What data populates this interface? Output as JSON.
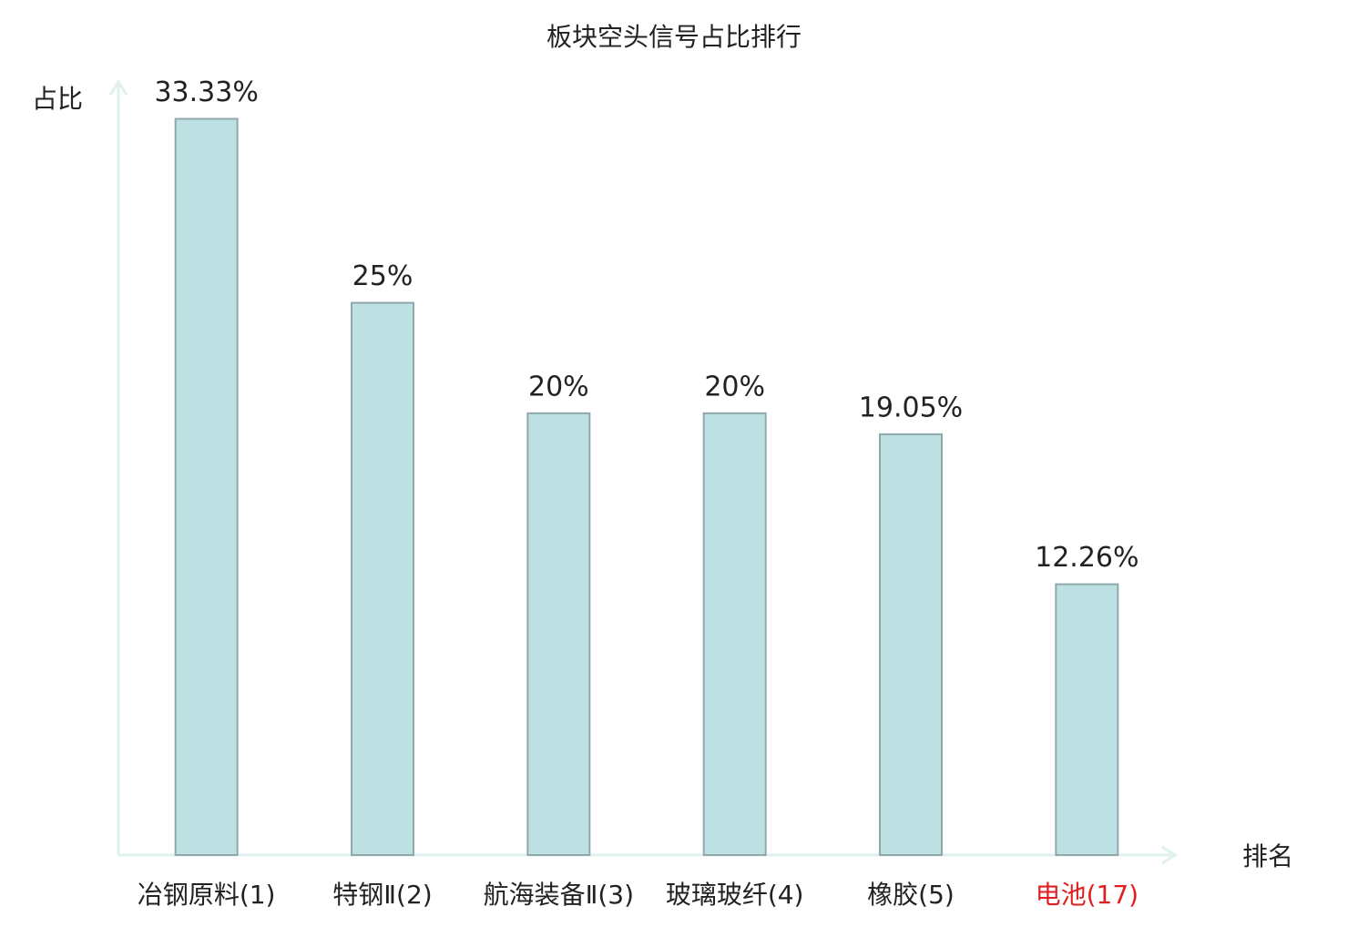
{
  "chart_data": {
    "type": "bar",
    "title": "板块空头信号占比排行",
    "y_label": "占比",
    "x_label": "排名",
    "categories": [
      "冶钢原料(1)",
      "特钢Ⅱ(2)",
      "航海装备Ⅱ(3)",
      "玻璃玻纤(4)",
      "橡胶(5)",
      "电池(17)"
    ],
    "category_colors": [
      "#222222",
      "#222222",
      "#222222",
      "#222222",
      "#222222",
      "#e02020"
    ],
    "values": [
      33.33,
      25,
      20,
      20,
      19.05,
      12.26
    ],
    "value_labels": [
      "33.33%",
      "25%",
      "20%",
      "20%",
      "19.05%",
      "12.26%"
    ],
    "color": "#bde0e2",
    "edge_color": "#8fa9aa",
    "axis_color": "#dff0ee",
    "ylim": [
      0,
      35
    ]
  }
}
